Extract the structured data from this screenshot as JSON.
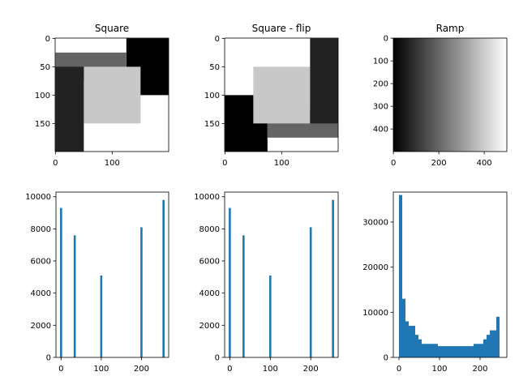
{
  "chart_data": [
    {
      "type": "image",
      "title": "Square",
      "xlim": [
        -0.5,
        199.5
      ],
      "ylim": [
        199.5,
        -0.5
      ],
      "xticks": [
        0,
        100
      ],
      "yticks": [
        0,
        50,
        100,
        150
      ],
      "background": 255,
      "regions": [
        {
          "x": [
            125,
            200
          ],
          "y": [
            0,
            100
          ],
          "value": 0
        },
        {
          "x": [
            0,
            125
          ],
          "y": [
            25,
            75
          ],
          "value": 100
        },
        {
          "x": [
            50,
            150
          ],
          "y": [
            50,
            150
          ],
          "value": 200
        },
        {
          "x": [
            0,
            50
          ],
          "y": [
            50,
            200
          ],
          "value": 34
        }
      ]
    },
    {
      "type": "image",
      "title": "Square - flip",
      "xlim": [
        -0.5,
        199.5
      ],
      "ylim": [
        199.5,
        -0.5
      ],
      "xticks": [
        0,
        100
      ],
      "yticks": [
        0,
        50,
        100,
        150
      ],
      "background": 255,
      "regions": [
        {
          "x": [
            0,
            75
          ],
          "y": [
            100,
            200
          ],
          "value": 0
        },
        {
          "x": [
            75,
            200
          ],
          "y": [
            125,
            175
          ],
          "value": 100
        },
        {
          "x": [
            50,
            150
          ],
          "y": [
            50,
            150
          ],
          "value": 200
        },
        {
          "x": [
            150,
            200
          ],
          "y": [
            0,
            150
          ],
          "value": 34
        }
      ]
    },
    {
      "type": "image",
      "title": "Ramp",
      "xlim": [
        -0.5,
        499.5
      ],
      "ylim": [
        499.5,
        -0.5
      ],
      "xticks": [
        0,
        200,
        400
      ],
      "yticks": [
        0,
        100,
        200,
        300,
        400
      ],
      "gradient": [
        0,
        255
      ]
    },
    {
      "type": "bar",
      "x": [
        0,
        34,
        100,
        200,
        255
      ],
      "values": [
        9300,
        7600,
        5100,
        8100,
        9800
      ],
      "color": "#1f77b4",
      "xlim": [
        -12.75,
        267.75
      ],
      "xticks": [
        0,
        100,
        200
      ],
      "ylim": [
        0,
        10290
      ],
      "yticks": [
        0,
        2000,
        4000,
        6000,
        8000,
        10000
      ]
    },
    {
      "type": "bar",
      "x": [
        0,
        34,
        100,
        200,
        255
      ],
      "values": [
        9300,
        7600,
        5100,
        8100,
        9800
      ],
      "color": "#1f77b4",
      "xlim": [
        -12.75,
        267.75
      ],
      "xticks": [
        0,
        100,
        200
      ],
      "ylim": [
        0,
        10290
      ],
      "yticks": [
        0,
        2000,
        4000,
        6000,
        8000,
        10000
      ]
    },
    {
      "type": "histogram",
      "bins": [
        0,
        8,
        16,
        24,
        32,
        40,
        48,
        56,
        64,
        72,
        80,
        88,
        96,
        104,
        112,
        120,
        128,
        136,
        144,
        152,
        160,
        168,
        176,
        184,
        192,
        200,
        208,
        216,
        224,
        232,
        240,
        248
      ],
      "values": [
        36000,
        13000,
        8000,
        7000,
        7000,
        5000,
        4000,
        3000,
        3000,
        3000,
        3000,
        3000,
        2500,
        2500,
        2500,
        2500,
        2500,
        2500,
        2500,
        2500,
        2500,
        2500,
        2500,
        3000,
        3000,
        3000,
        4000,
        5000,
        6000,
        6000,
        9000
      ],
      "color": "#1f77b4",
      "xlim": [
        -14,
        266
      ],
      "xticks": [
        0,
        100,
        200
      ],
      "ylim": [
        0,
        36650
      ],
      "yticks": [
        0,
        10000,
        20000,
        30000
      ]
    }
  ]
}
